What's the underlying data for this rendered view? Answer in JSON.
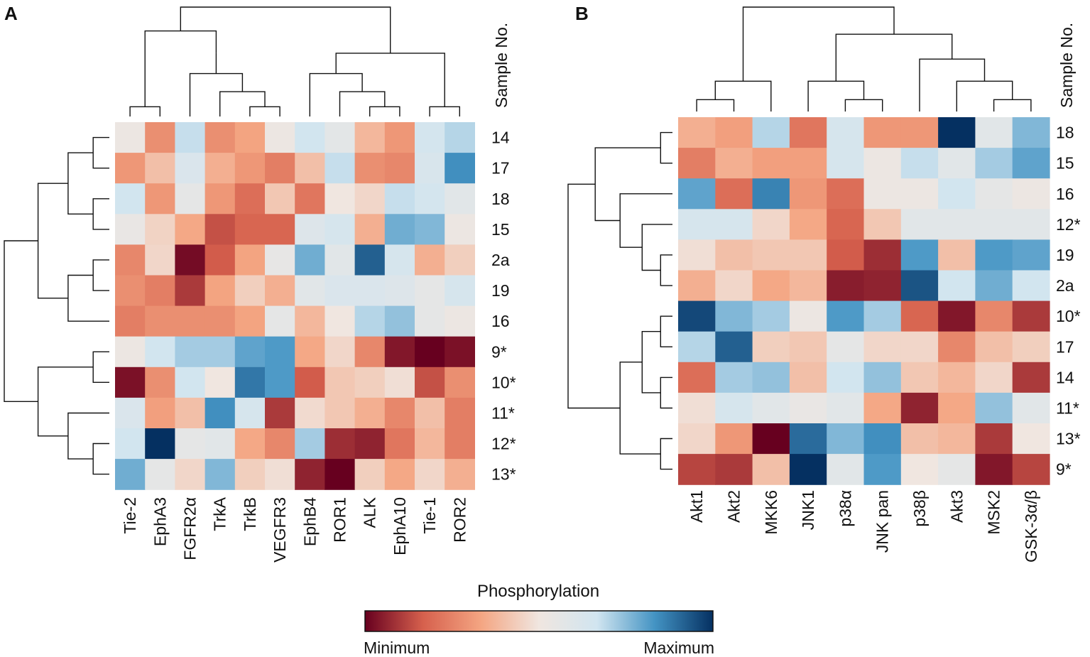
{
  "legend": {
    "title": "Phosphorylation",
    "min_label": "Minimum",
    "max_label": "Maximum",
    "color_stops": [
      "#67001f",
      "#d6604d",
      "#f4a582",
      "#f0e6e0",
      "#d1e5f0",
      "#4393c3",
      "#053061"
    ]
  },
  "chart_data": [
    {
      "type": "heatmap",
      "panel_label": "A",
      "row_axis_title": "Sample No.",
      "columns": [
        "Tie-2",
        "EphA3",
        "FGFR2α",
        "TrkA",
        "TrkB",
        "VEGFR3",
        "EphB4",
        "ROR1",
        "ALK",
        "EphA10",
        "Tie-1",
        "ROR2"
      ],
      "rows": [
        "14",
        "17",
        "18",
        "15",
        "2a",
        "19",
        "16",
        "9*",
        "10*",
        "11*",
        "12*",
        "13*"
      ],
      "value_scale": "0 = minimum (dark red) to 1 = maximum (dark blue), estimated from colour",
      "values": [
        [
          0.52,
          0.28,
          0.68,
          0.28,
          0.33,
          0.52,
          0.66,
          0.57,
          0.38,
          0.3,
          0.65,
          0.7
        ],
        [
          0.3,
          0.4,
          0.62,
          0.36,
          0.3,
          0.24,
          0.4,
          0.68,
          0.28,
          0.26,
          0.63,
          0.84
        ],
        [
          0.66,
          0.3,
          0.56,
          0.3,
          0.2,
          0.42,
          0.22,
          0.5,
          0.46,
          0.68,
          0.65,
          0.58
        ],
        [
          0.54,
          0.45,
          0.34,
          0.14,
          0.18,
          0.18,
          0.6,
          0.64,
          0.36,
          0.78,
          0.76,
          0.52
        ],
        [
          0.26,
          0.46,
          0.02,
          0.16,
          0.33,
          0.55,
          0.78,
          0.58,
          0.92,
          0.64,
          0.36,
          0.44
        ],
        [
          0.28,
          0.24,
          0.1,
          0.33,
          0.44,
          0.36,
          0.58,
          0.62,
          0.62,
          0.6,
          0.56,
          0.64
        ],
        [
          0.24,
          0.28,
          0.28,
          0.28,
          0.33,
          0.56,
          0.38,
          0.5,
          0.7,
          0.74,
          0.56,
          0.52
        ],
        [
          0.52,
          0.66,
          0.72,
          0.72,
          0.8,
          0.82,
          0.34,
          0.46,
          0.26,
          0.04,
          0.0,
          0.03
        ],
        [
          0.03,
          0.28,
          0.66,
          0.5,
          0.88,
          0.82,
          0.16,
          0.42,
          0.44,
          0.48,
          0.14,
          0.28
        ],
        [
          0.62,
          0.32,
          0.4,
          0.84,
          0.64,
          0.1,
          0.47,
          0.42,
          0.36,
          0.26,
          0.4,
          0.24
        ],
        [
          0.66,
          1.0,
          0.56,
          0.58,
          0.34,
          0.26,
          0.72,
          0.08,
          0.06,
          0.22,
          0.38,
          0.24
        ],
        [
          0.78,
          0.56,
          0.46,
          0.76,
          0.44,
          0.48,
          0.06,
          0.0,
          0.44,
          0.34,
          0.46,
          0.36
        ]
      ]
    },
    {
      "type": "heatmap",
      "panel_label": "B",
      "row_axis_title": "Sample No.",
      "columns": [
        "Akt1",
        "Akt2",
        "MKK6",
        "JNK1",
        "p38α",
        "JNK pan",
        "p38β",
        "Akt3",
        "MSK2",
        "GSK-3α/β"
      ],
      "rows": [
        "18",
        "15",
        "16",
        "12*",
        "19",
        "2a",
        "10*",
        "17",
        "14",
        "11*",
        "13*",
        "9*"
      ],
      "value_scale": "0 = minimum (dark red) to 1 = maximum (dark blue), estimated from colour",
      "values": [
        [
          0.36,
          0.32,
          0.7,
          0.22,
          0.64,
          0.3,
          0.3,
          1.0,
          0.58,
          0.76
        ],
        [
          0.24,
          0.36,
          0.32,
          0.32,
          0.64,
          0.52,
          0.68,
          0.58,
          0.72,
          0.8
        ],
        [
          0.8,
          0.2,
          0.86,
          0.3,
          0.2,
          0.52,
          0.52,
          0.66,
          0.56,
          0.52
        ],
        [
          0.64,
          0.64,
          0.46,
          0.34,
          0.18,
          0.42,
          0.58,
          0.58,
          0.58,
          0.58
        ],
        [
          0.48,
          0.4,
          0.42,
          0.42,
          0.16,
          0.08,
          0.82,
          0.4,
          0.82,
          0.8
        ],
        [
          0.36,
          0.46,
          0.34,
          0.38,
          0.05,
          0.06,
          0.94,
          0.66,
          0.78,
          0.66
        ],
        [
          0.96,
          0.76,
          0.72,
          0.52,
          0.82,
          0.72,
          0.18,
          0.04,
          0.26,
          0.1
        ],
        [
          0.7,
          0.92,
          0.44,
          0.42,
          0.56,
          0.46,
          0.46,
          0.26,
          0.4,
          0.44
        ],
        [
          0.2,
          0.72,
          0.74,
          0.4,
          0.66,
          0.74,
          0.42,
          0.38,
          0.46,
          0.1
        ],
        [
          0.48,
          0.64,
          0.58,
          0.54,
          0.58,
          0.34,
          0.06,
          0.34,
          0.74,
          0.58
        ],
        [
          0.46,
          0.3,
          0.0,
          0.9,
          0.76,
          0.84,
          0.4,
          0.38,
          0.1,
          0.5
        ],
        [
          0.12,
          0.1,
          0.4,
          1.0,
          0.58,
          0.82,
          0.5,
          0.56,
          0.04,
          0.12
        ]
      ]
    }
  ]
}
